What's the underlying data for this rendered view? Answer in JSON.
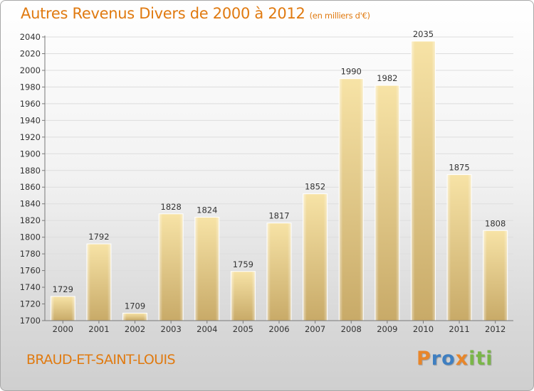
{
  "title": "Autres Revenus Divers de 2000 à 2012",
  "title_unit": "(en milliers d'€)",
  "place": "BRAUD-ET-SAINT-LOUIS",
  "logo": {
    "letters": [
      "P",
      "r",
      "o",
      "x",
      "i",
      "t",
      "i"
    ],
    "colors": [
      "#e8862a",
      "#3f7fc1",
      "#3f7fc1",
      "#e8862a",
      "#7ab648",
      "#7ab648",
      "#7ab648"
    ]
  },
  "colors": {
    "accent": "#e07a10",
    "bar_light": "#f5de9c",
    "bar_dark": "#c9ab6a"
  },
  "chart_data": {
    "type": "bar",
    "categories": [
      "2000",
      "2001",
      "2002",
      "2003",
      "2004",
      "2005",
      "2006",
      "2007",
      "2008",
      "2009",
      "2010",
      "2011",
      "2012"
    ],
    "values": [
      1729,
      1792,
      1709,
      1828,
      1824,
      1759,
      1817,
      1852,
      1990,
      1982,
      2035,
      1875,
      1808
    ],
    "title": "Autres Revenus Divers de 2000 à 2012",
    "ylim": [
      1700,
      2040
    ],
    "yticks": [
      1700,
      1720,
      1740,
      1760,
      1780,
      1800,
      1820,
      1840,
      1860,
      1880,
      1900,
      1920,
      1940,
      1960,
      1980,
      2000,
      2020,
      2040
    ],
    "grid": true,
    "data_labels": true
  }
}
